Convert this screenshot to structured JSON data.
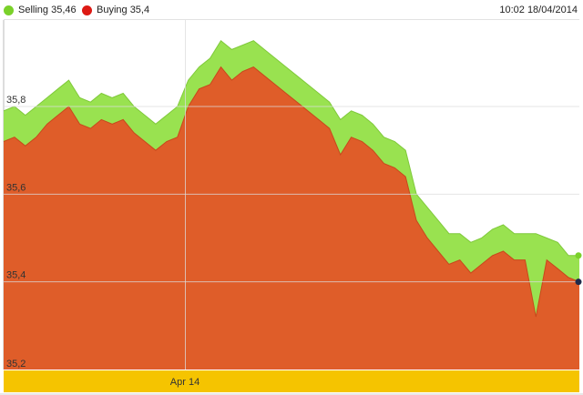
{
  "header": {
    "timestamp": "10:02 18/04/2014"
  },
  "colors": {
    "selling": "#99e250",
    "selling_legend": "#7ad12a",
    "buying": "#df5d29",
    "buying_legend": "#dd1a14",
    "axis_band": "#f5c400",
    "gridline": "#dcdcdc",
    "last_point_marker": "#1f2a4a"
  },
  "chart_data": {
    "type": "area",
    "legend_position": "top-left",
    "grid": true,
    "ylim": [
      35.2,
      35.9
    ],
    "y_ticks": [
      {
        "value": 35.8,
        "label": "35,8"
      },
      {
        "value": 35.6,
        "label": "35,6"
      },
      {
        "value": 35.4,
        "label": "35,4"
      },
      {
        "value": 35.2,
        "label": "35,2"
      }
    ],
    "x_ticks": [
      {
        "index": 16,
        "label": "Apr 14"
      }
    ],
    "series": [
      {
        "name": "Selling",
        "legend_label": "Selling 35,46",
        "values": [
          35.79,
          35.8,
          35.78,
          35.8,
          35.82,
          35.84,
          35.86,
          35.82,
          35.81,
          35.83,
          35.82,
          35.83,
          35.8,
          35.78,
          35.76,
          35.78,
          35.8,
          35.86,
          35.89,
          35.91,
          35.95,
          35.93,
          35.94,
          35.95,
          35.93,
          35.91,
          35.89,
          35.87,
          35.85,
          35.83,
          35.81,
          35.77,
          35.79,
          35.78,
          35.76,
          35.73,
          35.72,
          35.7,
          35.6,
          35.57,
          35.54,
          35.51,
          35.51,
          35.49,
          35.5,
          35.52,
          35.53,
          35.51,
          35.51,
          35.51,
          35.5,
          35.49,
          35.46,
          35.46
        ]
      },
      {
        "name": "Buying",
        "legend_label": "Buying 35,4",
        "values": [
          35.72,
          35.73,
          35.71,
          35.73,
          35.76,
          35.78,
          35.8,
          35.76,
          35.75,
          35.77,
          35.76,
          35.77,
          35.74,
          35.72,
          35.7,
          35.72,
          35.73,
          35.8,
          35.84,
          35.85,
          35.89,
          35.86,
          35.88,
          35.89,
          35.87,
          35.85,
          35.83,
          35.81,
          35.79,
          35.77,
          35.75,
          35.69,
          35.73,
          35.72,
          35.7,
          35.67,
          35.66,
          35.64,
          35.54,
          35.5,
          35.47,
          35.44,
          35.45,
          35.42,
          35.44,
          35.46,
          35.47,
          35.45,
          35.45,
          35.32,
          35.45,
          35.43,
          35.41,
          35.4
        ]
      }
    ]
  }
}
